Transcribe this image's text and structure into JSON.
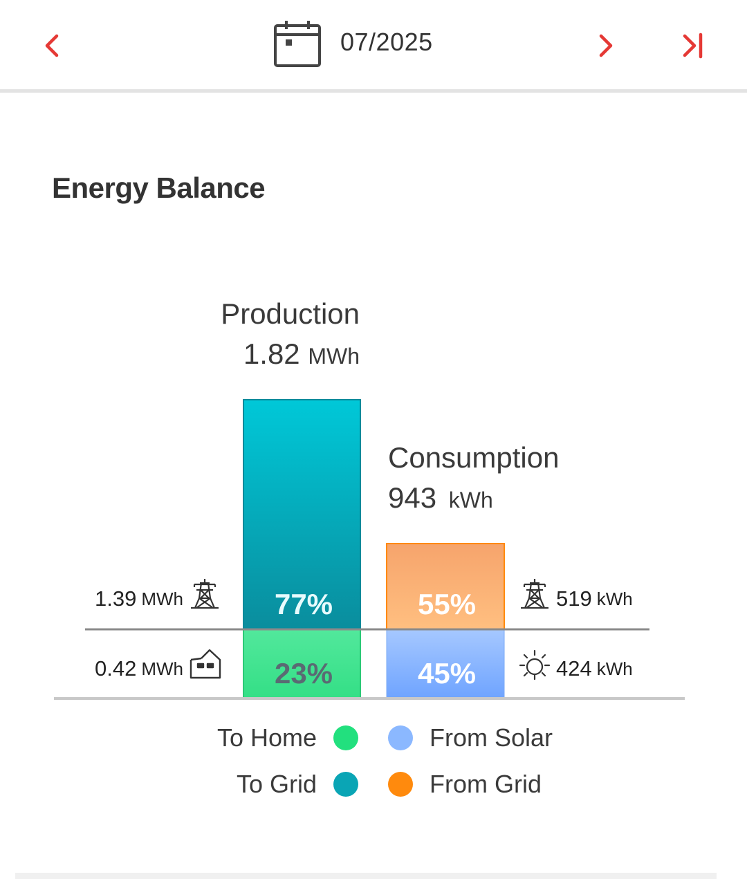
{
  "header": {
    "period": "07/2025",
    "prev_icon": "chevron-left-icon",
    "next_icon": "chevron-right-icon",
    "last_icon": "skip-to-end-icon",
    "calendar_icon": "calendar-icon",
    "accent_color": "#e53935"
  },
  "section": {
    "title": "Energy Balance"
  },
  "production": {
    "label": "Production",
    "value": "1.82",
    "unit": "MWh",
    "segments": {
      "to_grid": {
        "percent": 77,
        "label": "77%",
        "value": "1.39",
        "unit": "MWh",
        "icon": "power-tower-icon"
      },
      "to_home": {
        "percent": 23,
        "label": "23%",
        "value": "0.42",
        "unit": "MWh",
        "icon": "house-icon"
      }
    }
  },
  "consumption": {
    "label": "Consumption",
    "value": "943",
    "unit": "kWh",
    "segments": {
      "from_grid": {
        "percent": 55,
        "label": "55%",
        "value": "519",
        "unit": "kWh",
        "icon": "power-tower-icon"
      },
      "from_solar": {
        "percent": 45,
        "label": "45%",
        "value": "424",
        "unit": "kWh",
        "icon": "sun-icon"
      }
    }
  },
  "legend": [
    {
      "label": "To Home",
      "color": "#22e07e"
    },
    {
      "label": "To Grid",
      "color": "#0aa5b5"
    },
    {
      "label": "From Solar",
      "color": "#8bb8ff"
    },
    {
      "label": "From Grid",
      "color": "#ff8a0d"
    }
  ],
  "chart_data": {
    "type": "bar",
    "categories": [
      "Production",
      "Consumption"
    ],
    "series": [
      {
        "name": "To Home",
        "values": [
          23,
          null
        ]
      },
      {
        "name": "To Grid",
        "values": [
          77,
          null
        ]
      },
      {
        "name": "From Solar",
        "values": [
          null,
          45
        ]
      },
      {
        "name": "From Grid",
        "values": [
          null,
          55
        ]
      }
    ],
    "totals": [
      "1.82 MWh",
      "943 kWh"
    ],
    "title": "Energy Balance"
  }
}
